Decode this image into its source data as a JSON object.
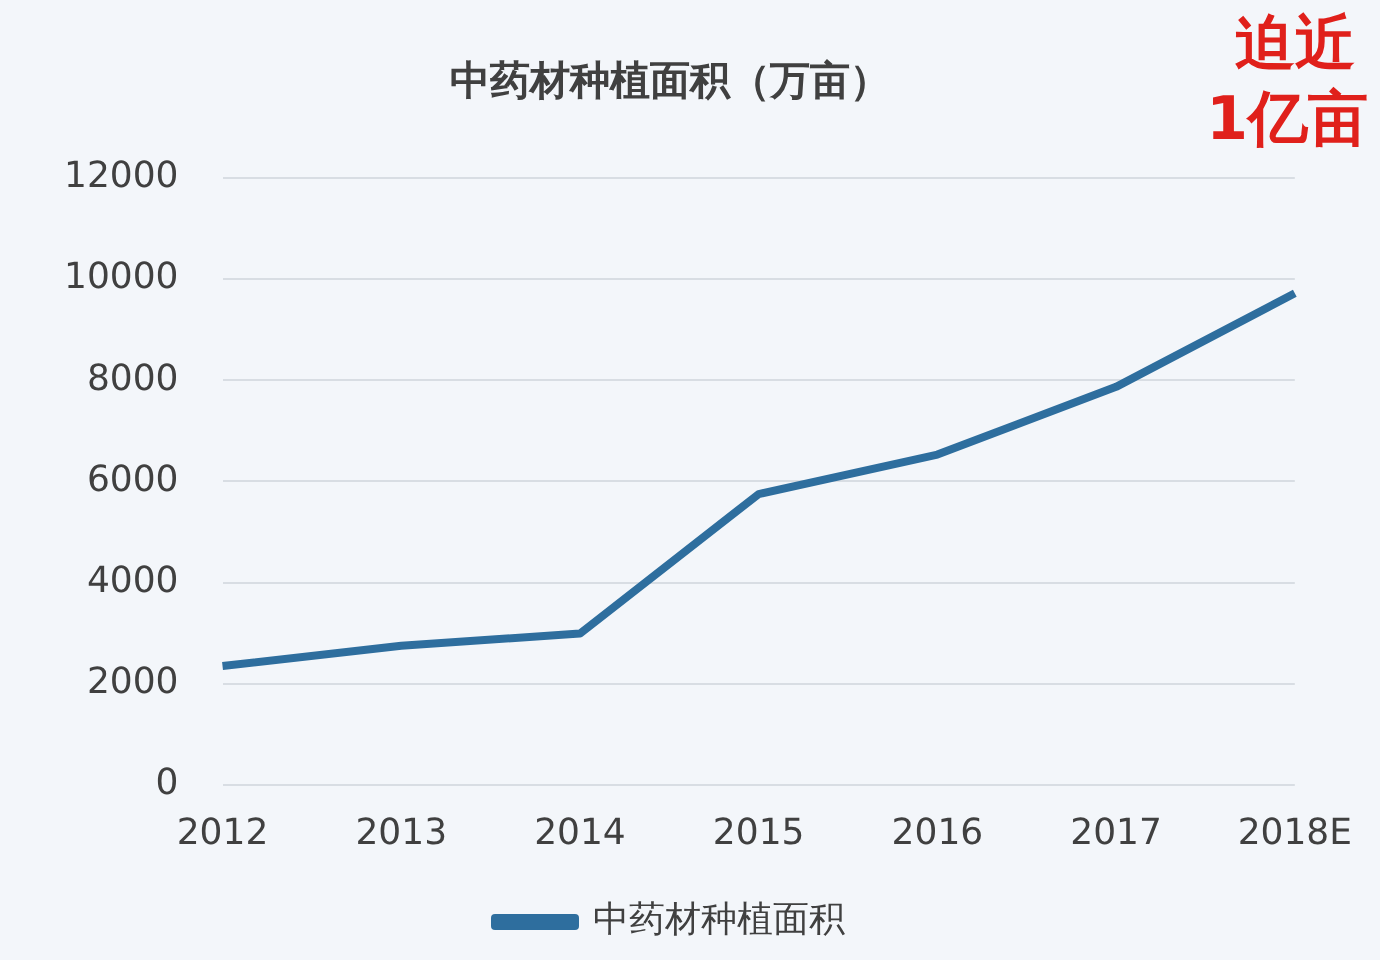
{
  "chart_data": {
    "type": "line",
    "title": "中药材种植面积（万亩）",
    "categories": [
      "2012",
      "2013",
      "2014",
      "2015",
      "2016",
      "2017",
      "2018E"
    ],
    "series": [
      {
        "name": "中药材种植面积",
        "color": "#2e6e9e",
        "values": [
          2350,
          2750,
          2990,
          5750,
          6530,
          7870,
          9720
        ]
      }
    ],
    "ylim": [
      0,
      12000
    ],
    "yticks": [
      0,
      2000,
      4000,
      6000,
      8000,
      10000,
      12000
    ],
    "grid": "y",
    "legend": "bottom",
    "marker": "none",
    "line_style": "solid",
    "annotations": [
      {
        "text": "迫近\n1亿亩",
        "x": "2018E",
        "y": 9720
      }
    ]
  }
}
